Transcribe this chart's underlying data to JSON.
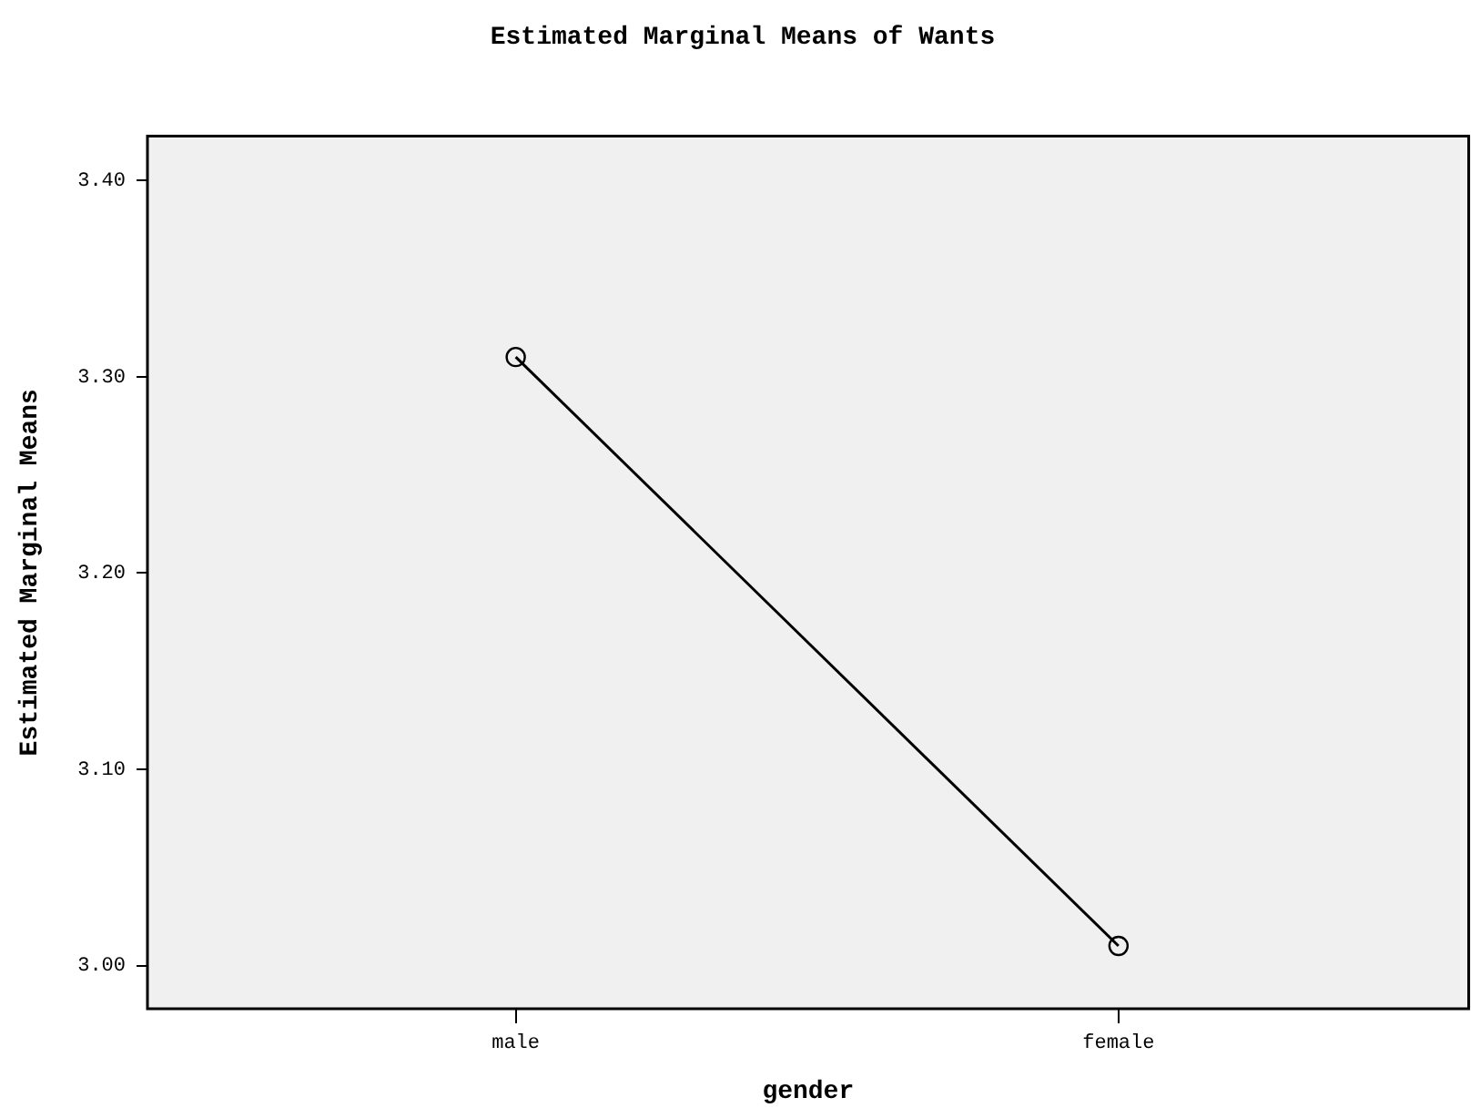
{
  "chart_data": {
    "type": "line",
    "title": "Estimated Marginal Means of Wants",
    "xlabel": "gender",
    "ylabel": "Estimated Marginal Means",
    "categories": [
      "male",
      "female"
    ],
    "series": [
      {
        "color": "#000000",
        "values": [
          3.31,
          3.01
        ]
      }
    ],
    "ylim": [
      2.978,
      3.4225
    ],
    "yticks": [
      {
        "value": 3.0,
        "label": "3.00"
      },
      {
        "value": 3.1,
        "label": "3.10"
      },
      {
        "value": 3.2,
        "label": "3.20"
      },
      {
        "value": 3.3,
        "label": "3.30"
      },
      {
        "value": 3.4,
        "label": "3.40"
      }
    ],
    "grid": false,
    "legend": false,
    "marker": "circle",
    "line_style": "solid"
  }
}
